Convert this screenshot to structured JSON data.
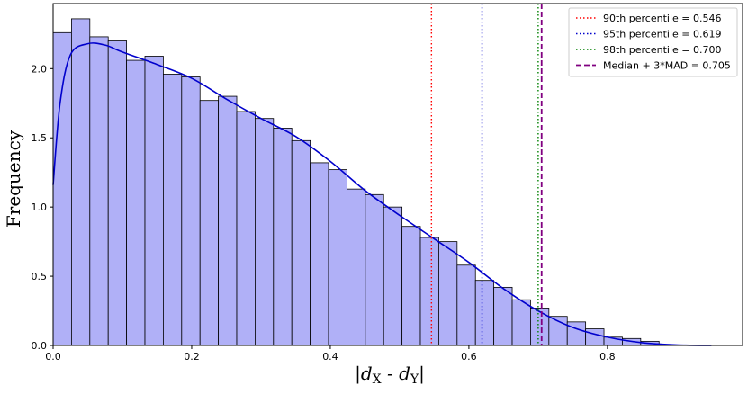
{
  "chart_data": {
    "type": "bar",
    "xlabel": "|d",
    "xlabel_parts": {
      "lead": "|d",
      "sub_x": "X",
      "mid": " - d",
      "sub_y": "Y",
      "tail": "|"
    },
    "ylabel": "Frequency",
    "xlim": [
      0.0,
      0.995
    ],
    "ylim": [
      0.0,
      2.47
    ],
    "x_ticks": [
      0.0,
      0.2,
      0.4,
      0.6,
      0.8
    ],
    "x_tick_labels": [
      "0.0",
      "0.2",
      "0.4",
      "0.6",
      "0.8"
    ],
    "y_ticks": [
      0.0,
      0.5,
      1.0,
      1.5,
      2.0
    ],
    "y_tick_labels": [
      "0.0",
      "0.5",
      "1.0",
      "1.5",
      "2.0"
    ],
    "grid": false,
    "legend_position": "top-right",
    "histogram": {
      "bin_width": 0.0265,
      "bin_start": 0.0,
      "values": [
        2.26,
        2.36,
        2.23,
        2.2,
        2.06,
        2.09,
        1.96,
        1.94,
        1.77,
        1.8,
        1.69,
        1.64,
        1.57,
        1.48,
        1.32,
        1.27,
        1.13,
        1.09,
        1.0,
        0.86,
        0.78,
        0.75,
        0.58,
        0.47,
        0.42,
        0.33,
        0.27,
        0.21,
        0.17,
        0.12,
        0.06,
        0.05,
        0.03
      ],
      "color": "#b0b0f7",
      "edge_color": "#000000"
    },
    "kde": {
      "color": "#0000cc",
      "x": [
        0.0,
        0.01,
        0.025,
        0.05,
        0.075,
        0.1,
        0.15,
        0.2,
        0.25,
        0.3,
        0.35,
        0.4,
        0.45,
        0.5,
        0.55,
        0.6,
        0.65,
        0.7,
        0.75,
        0.8,
        0.85,
        0.9,
        0.95
      ],
      "y": [
        1.16,
        1.75,
        2.1,
        2.18,
        2.17,
        2.12,
        2.03,
        1.93,
        1.78,
        1.64,
        1.51,
        1.33,
        1.12,
        0.94,
        0.77,
        0.6,
        0.41,
        0.25,
        0.13,
        0.06,
        0.02,
        0.004,
        0.0
      ]
    },
    "series": [
      {
        "name": "90th percentile = 0.546",
        "x": 0.546,
        "color": "#ff0000",
        "style": "dotted"
      },
      {
        "name": "95th percentile = 0.619",
        "x": 0.619,
        "color": "#0000cc",
        "style": "dotted"
      },
      {
        "name": "98th percentile = 0.700",
        "x": 0.7,
        "color": "#008000",
        "style": "dotted"
      },
      {
        "name": "Median + 3*MAD = 0.705",
        "x": 0.705,
        "color": "#800080",
        "style": "dashed"
      }
    ]
  }
}
